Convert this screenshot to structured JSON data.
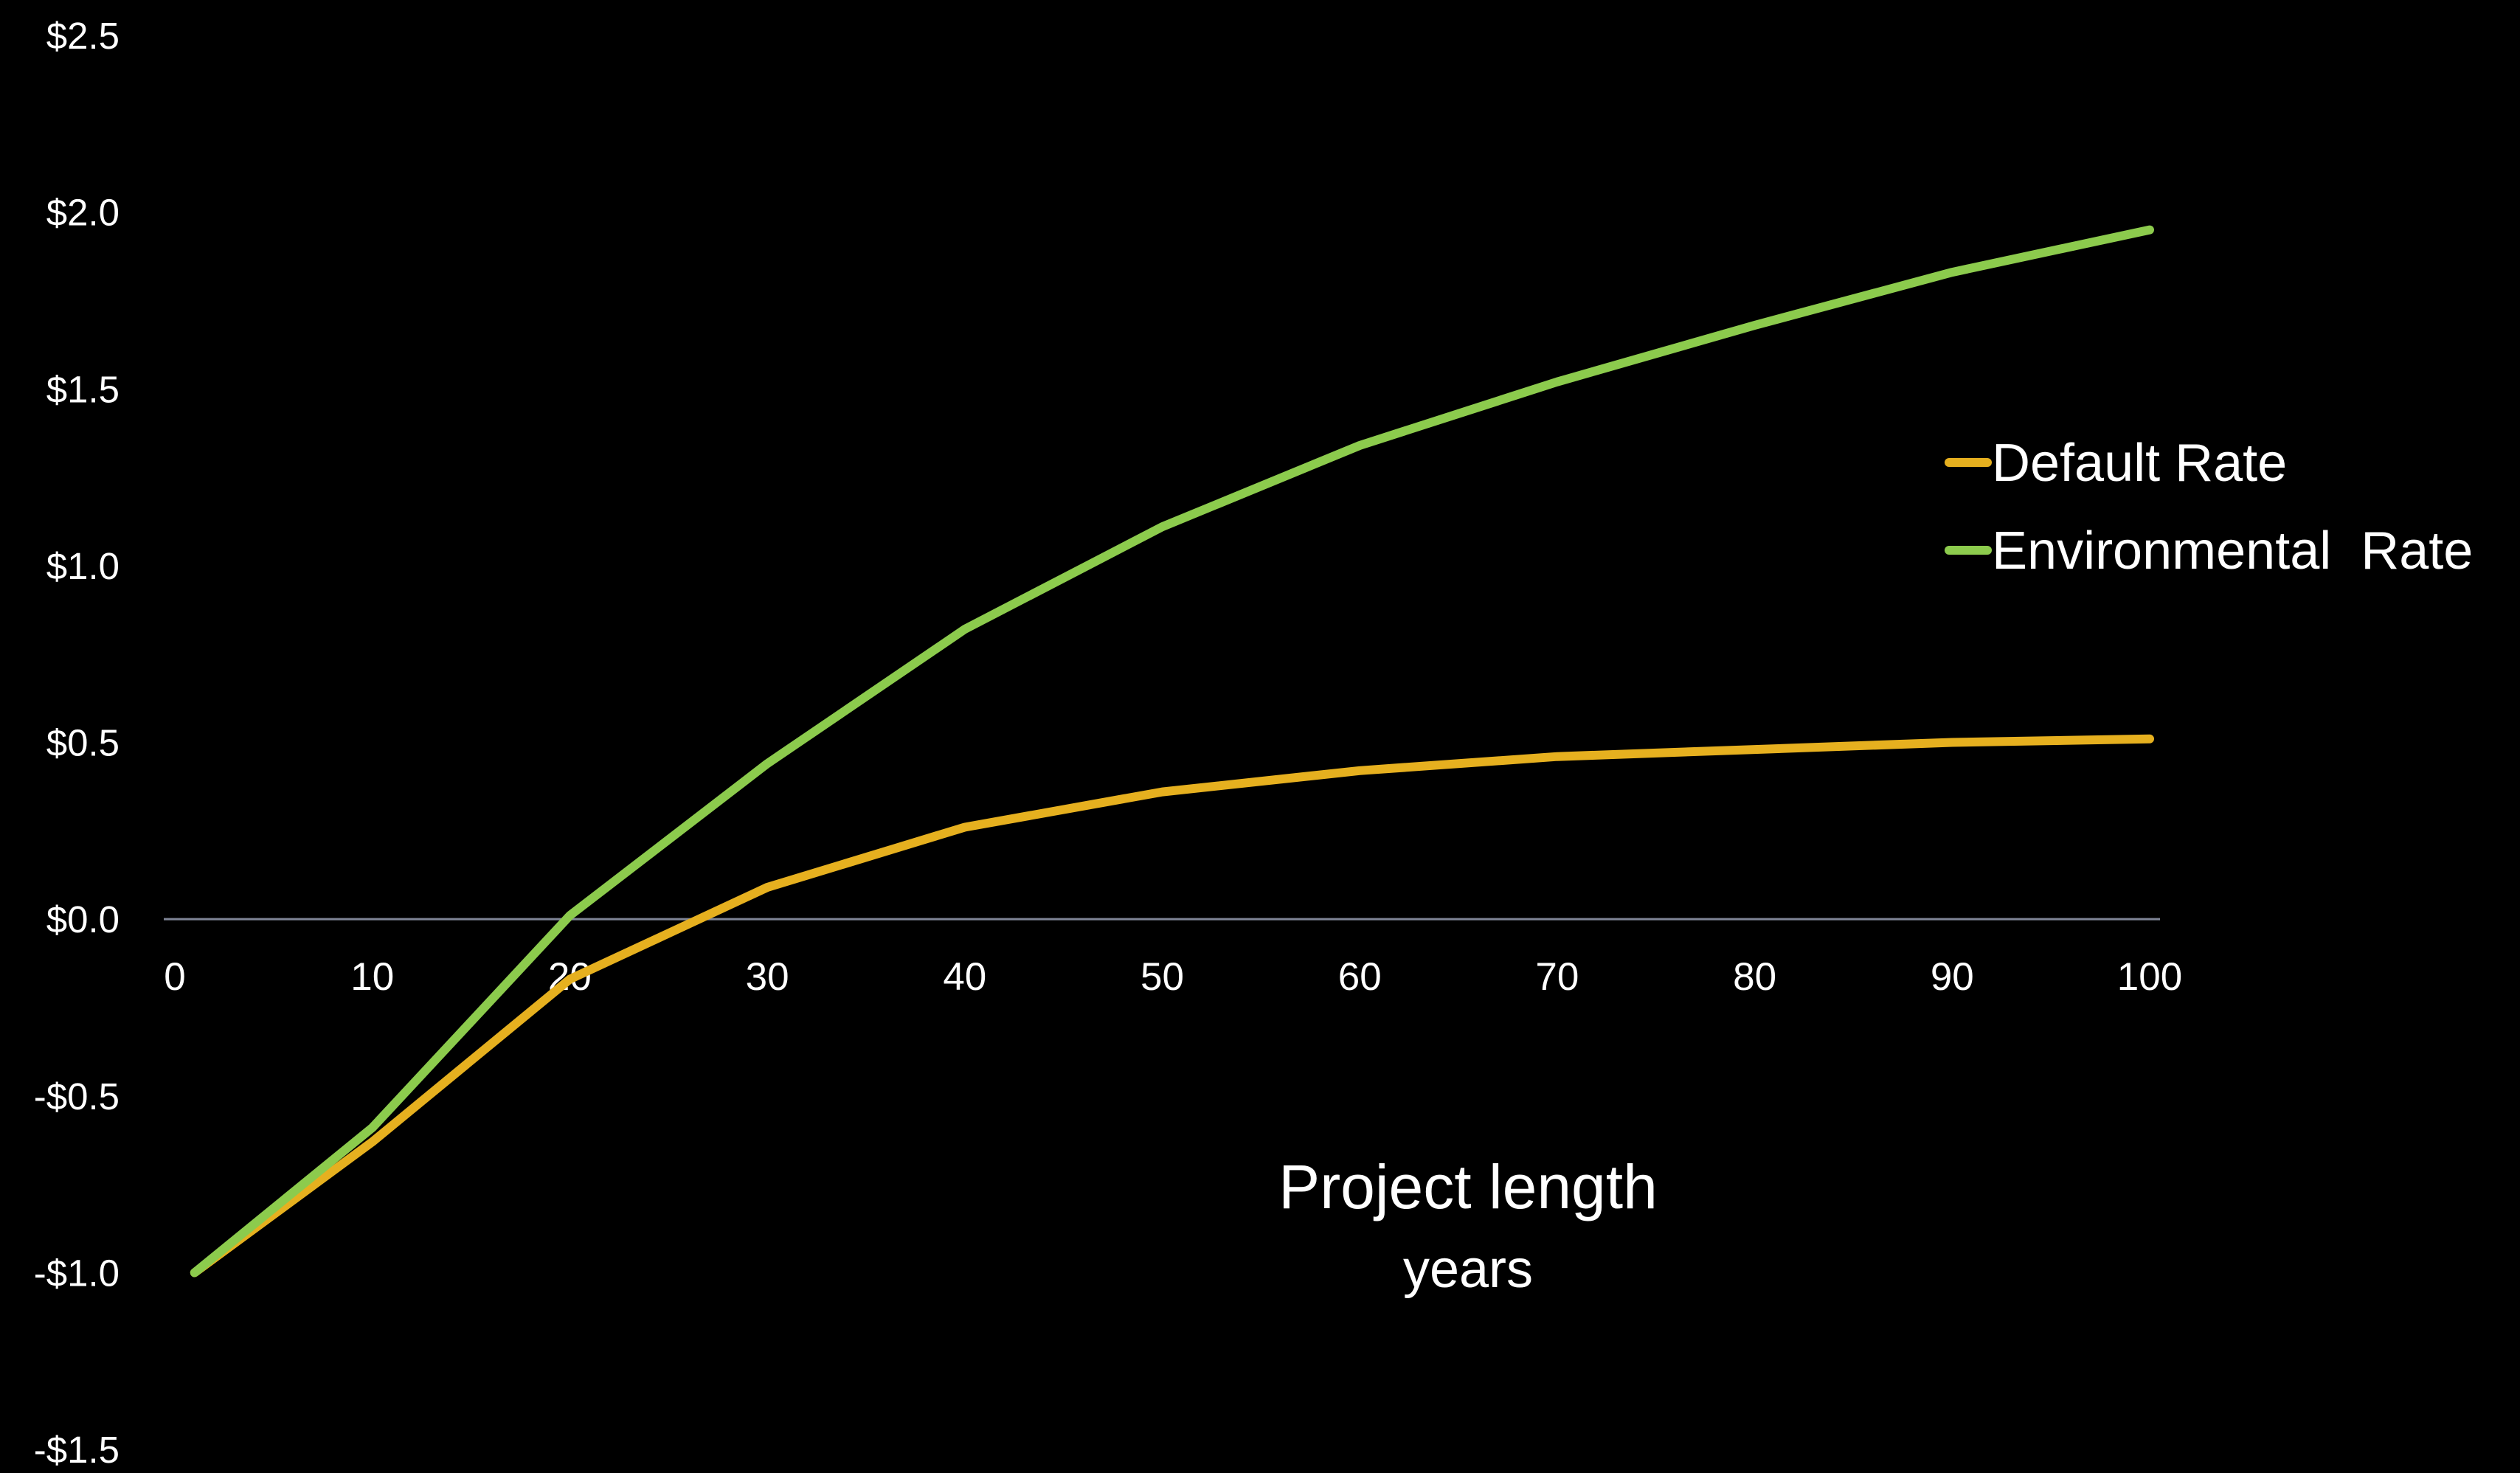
{
  "chart_data": {
    "type": "line",
    "xlabel": "Project length",
    "xlabel_sub": "years",
    "ylabel": "",
    "title": "",
    "x": [
      1,
      10,
      20,
      30,
      40,
      50,
      60,
      70,
      80,
      90,
      100
    ],
    "xlim": [
      0,
      100
    ],
    "ylim": [
      -1.5,
      2.5
    ],
    "xticks": [
      "0",
      "10",
      "20",
      "30",
      "40",
      "50",
      "60",
      "70",
      "80",
      "90",
      "100"
    ],
    "yticks": [
      {
        "value": 2.5,
        "label": "$2.5"
      },
      {
        "value": 2.0,
        "label": "$2.0"
      },
      {
        "value": 1.5,
        "label": "$1.5"
      },
      {
        "value": 1.0,
        "label": "$1.0"
      },
      {
        "value": 0.5,
        "label": "$0.5"
      },
      {
        "value": 0.0,
        "label": "$0.0"
      },
      {
        "value": -0.5,
        "label": "-$0.5"
      },
      {
        "value": -1.0,
        "label": "-$1.0"
      },
      {
        "value": -1.5,
        "label": "-$1.5"
      }
    ],
    "grid": false,
    "legend_position": "right",
    "series": [
      {
        "name": "Default Rate",
        "color": "#E6B01F",
        "values": [
          -1.0,
          -0.63,
          -0.17,
          0.09,
          0.26,
          0.36,
          0.42,
          0.46,
          0.48,
          0.5,
          0.51
        ]
      },
      {
        "name": "Environmental  Rate",
        "color": "#8CCB4D",
        "values": [
          -1.0,
          -0.59,
          0.01,
          0.44,
          0.82,
          1.11,
          1.34,
          1.52,
          1.68,
          1.83,
          1.95
        ]
      }
    ]
  }
}
